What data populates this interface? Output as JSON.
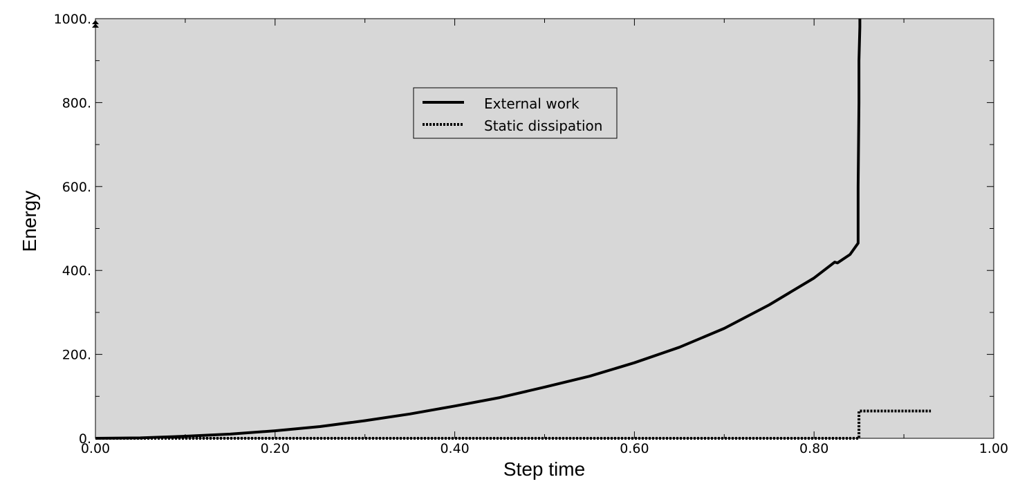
{
  "chart_data": {
    "type": "line",
    "xlabel": "Step time",
    "ylabel": "Energy",
    "xlim": [
      0,
      1
    ],
    "ylim": [
      0,
      1000
    ],
    "x_ticks": [
      {
        "value": 0.0,
        "label": "0.00"
      },
      {
        "value": 0.2,
        "label": "0.20"
      },
      {
        "value": 0.4,
        "label": "0.40"
      },
      {
        "value": 0.6,
        "label": "0.60"
      },
      {
        "value": 0.8,
        "label": "0.80"
      },
      {
        "value": 1.0,
        "label": "1.00"
      }
    ],
    "y_ticks": [
      {
        "value": 0,
        "label": "0."
      },
      {
        "value": 200,
        "label": "200."
      },
      {
        "value": 400,
        "label": "400."
      },
      {
        "value": 600,
        "label": "600."
      },
      {
        "value": 800,
        "label": "800."
      },
      {
        "value": 1000,
        "label": "1000."
      }
    ],
    "grid": false,
    "legend_position": "top-center",
    "colors": {
      "plot_background": "#d7d7d7",
      "line": "#000000",
      "legend_background": "#d7d7d7"
    },
    "series": [
      {
        "name": "External work",
        "style": "solid",
        "x": [
          0.0,
          0.05,
          0.1,
          0.15,
          0.2,
          0.25,
          0.3,
          0.35,
          0.4,
          0.45,
          0.5,
          0.55,
          0.6,
          0.65,
          0.7,
          0.75,
          0.8,
          0.823,
          0.826,
          0.84,
          0.849,
          0.849,
          0.85,
          0.85,
          0.851,
          0.851
        ],
        "y": [
          0,
          1,
          5,
          10,
          18,
          28,
          42,
          58,
          77,
          97,
          122,
          148,
          180,
          217,
          262,
          318,
          382,
          420,
          418,
          438,
          465,
          600,
          800,
          900,
          980,
          1000
        ]
      },
      {
        "name": "Static dissipation",
        "style": "dotted",
        "x": [
          0.0,
          0.849,
          0.85,
          0.85,
          0.93
        ],
        "y": [
          0,
          0,
          0,
          65,
          65
        ]
      }
    ]
  }
}
